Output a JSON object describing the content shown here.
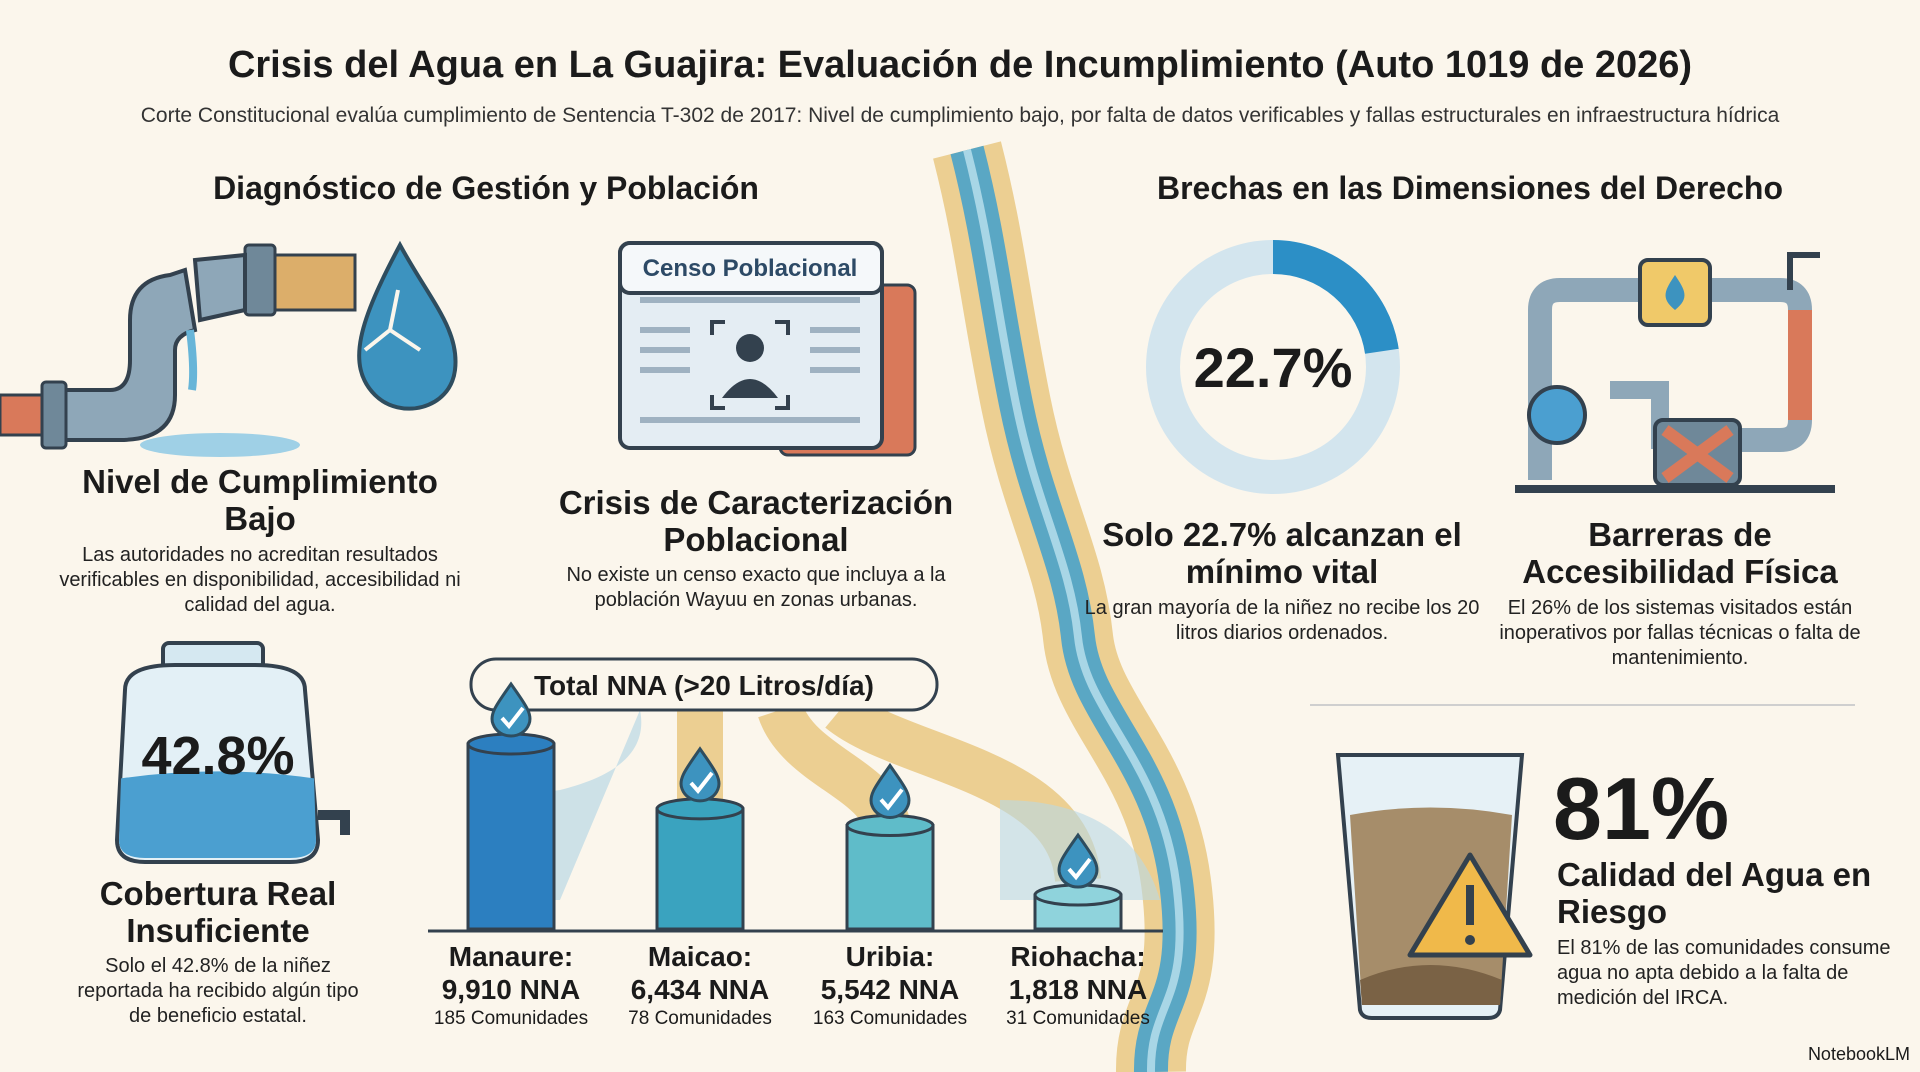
{
  "header": {
    "title": "Crisis del Agua en La Guajira: Evaluación de Incumplimiento (Auto 1019 de 2026)",
    "subtitle": "Corte Constitucional evalúa cumplimiento de Sentencia T-302 de 2017: Nivel de cumplimiento bajo, por falta de datos verificables y fallas estructurales en infraestructura hídrica"
  },
  "diagnostico": {
    "heading": "Diagnóstico de Gestión y Población",
    "cumplimiento": {
      "title": "Nivel de Cumplimiento Bajo",
      "text": "Las autoridades no acreditan resultados verificables en disponibilidad, accesibilidad ni calidad del agua."
    },
    "censo": {
      "icon_label": "Censo Poblacional",
      "title": "Crisis de Caracterización Poblacional",
      "text": "No existe un censo exacto que incluya a la población Wayuu en zonas urbanas."
    },
    "cobertura": {
      "value": 42.8,
      "value_label": "42.8%",
      "title": "Cobertura Real Insuficiente",
      "text": "Solo el 42.8% de la niñez reportada ha recibido algún tipo de beneficio estatal."
    },
    "nna": {
      "title": "Total NNA (>20 Litros/día)",
      "categories": [
        "Manaure:",
        "Maicao:",
        "Uribia:",
        "Riohacha:"
      ],
      "values": [
        9910,
        6434,
        5542,
        1818
      ],
      "value_labels": [
        "9,910 NNA",
        "6,434 NNA",
        "5,542 NNA",
        "1,818 NNA"
      ],
      "communities": [
        "185 Comunidades",
        "78 Comunidades",
        "163 Comunidades",
        "31 Comunidades"
      ],
      "colors": [
        "#2c7fc0",
        "#3aa3bf",
        "#5fbcc9",
        "#8fd3dc"
      ]
    }
  },
  "brechas": {
    "heading": "Brechas en las Dimensiones del Derecho",
    "minimo": {
      "value": 22.7,
      "value_label": "22.7%",
      "title": "Solo 22.7% alcanzan el mínimo vital",
      "text": "La gran mayoría de la niñez no recibe los 20 litros diarios ordenados."
    },
    "barreras": {
      "title": "Barreras de Accesibilidad Física",
      "text": "El 26% de los sistemas visitados están inoperativos por fallas técnicas o falta de mantenimiento."
    },
    "calidad": {
      "value_label": "81%",
      "title": "Calidad del Agua en Riesgo",
      "text": "El 81% de las comunidades consume agua no apta debido a la falta de medición del IRCA."
    }
  },
  "footer": {
    "brand": "NotebookLM"
  }
}
